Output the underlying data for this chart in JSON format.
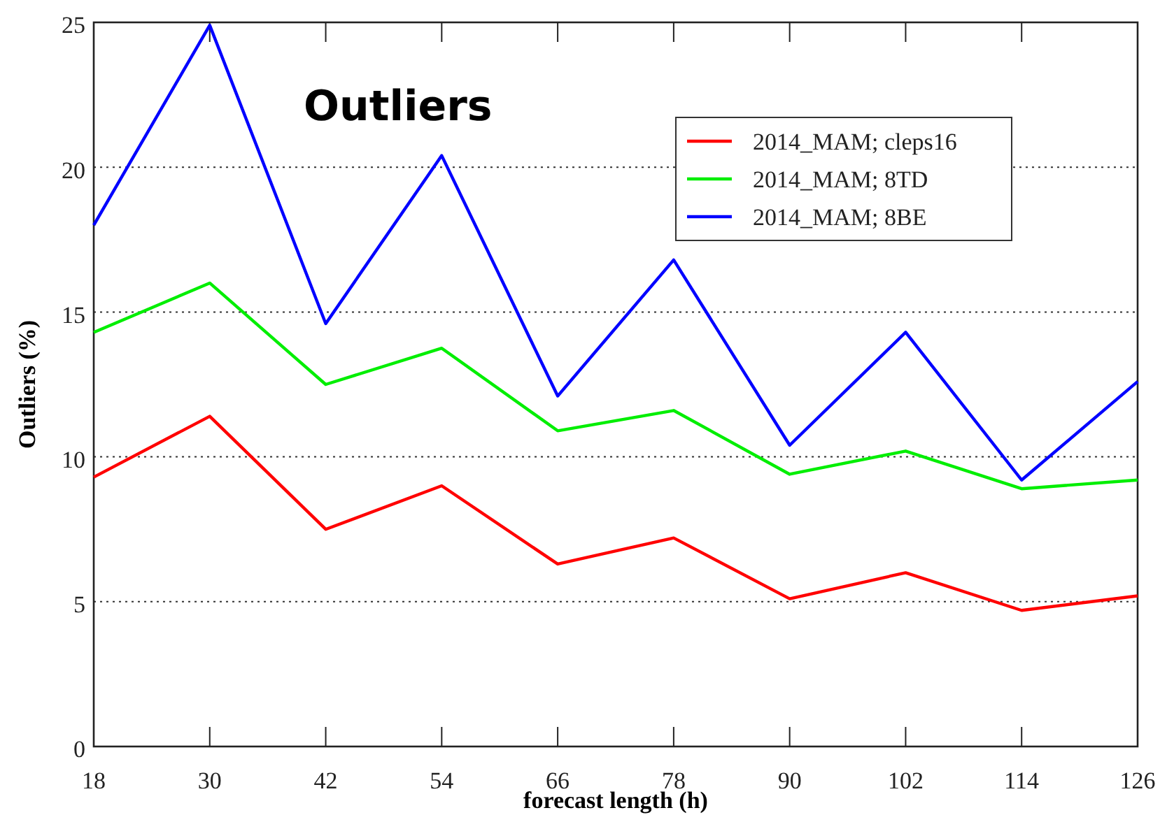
{
  "chart_data": {
    "type": "line",
    "title": "Outliers",
    "xlabel": "forecast length (h)",
    "ylabel": "Outliers (%)",
    "x": [
      18,
      30,
      42,
      54,
      66,
      78,
      90,
      102,
      114,
      126
    ],
    "series": [
      {
        "name": "2014_MAM; cleps16",
        "color": "#ff0000",
        "values": [
          9.3,
          11.4,
          7.5,
          9.0,
          6.3,
          7.2,
          5.1,
          6.0,
          4.7,
          5.2
        ]
      },
      {
        "name": "2014_MAM; 8TD",
        "color": "#00ee00",
        "values": [
          14.3,
          16.0,
          12.5,
          13.75,
          10.9,
          11.6,
          9.4,
          10.2,
          8.9,
          9.2
        ]
      },
      {
        "name": "2014_MAM; 8BE",
        "color": "#0000ff",
        "values": [
          18.0,
          24.9,
          14.6,
          20.4,
          12.1,
          16.8,
          10.4,
          14.3,
          9.2,
          12.6
        ]
      }
    ],
    "xlim": [
      18,
      126
    ],
    "xticks": [
      18,
      30,
      42,
      54,
      66,
      78,
      90,
      102,
      114,
      126
    ],
    "ylim": [
      0,
      25
    ],
    "yticks": [
      0,
      5,
      10,
      15,
      20,
      25
    ],
    "grid": "y",
    "legend": "top right",
    "marker": "none",
    "line_style": "solid"
  }
}
